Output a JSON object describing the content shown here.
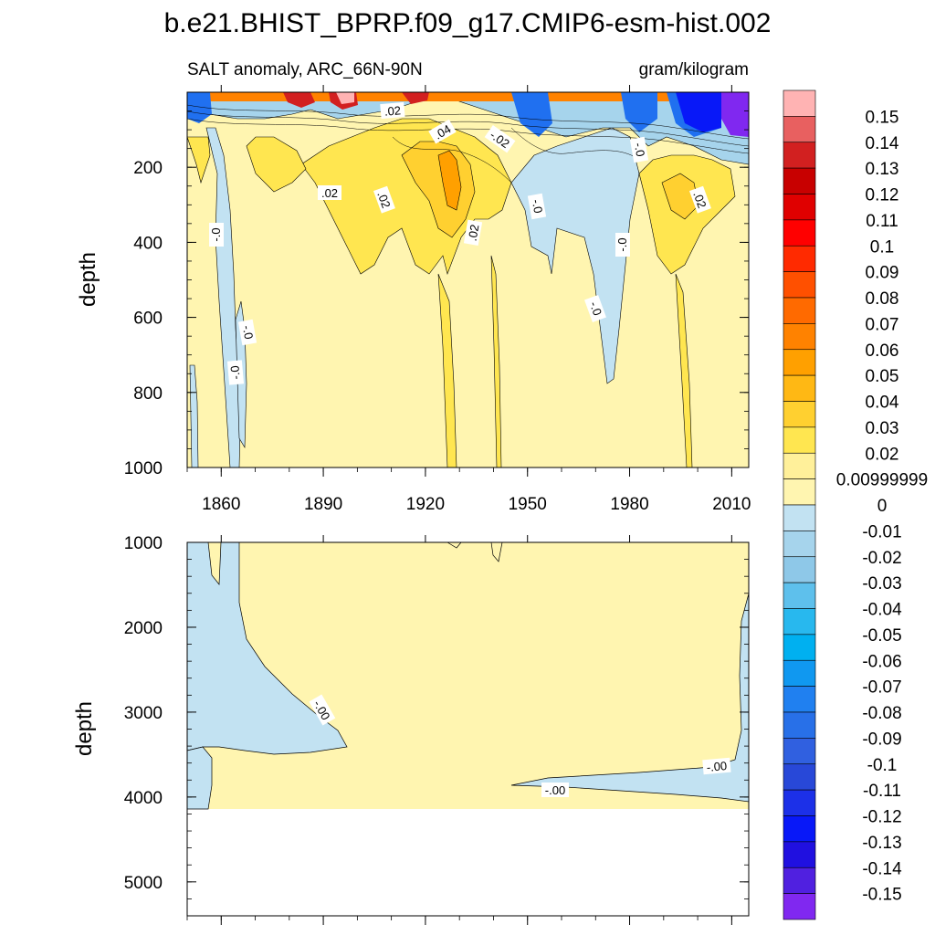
{
  "title": "b.e21.BHIST_BPRP.f09_g17.CMIP6-esm-hist.002",
  "chart_data": [
    {
      "type": "heatmap",
      "panel": "upper",
      "left_label": "SALT anomaly, ARC_66N-90N",
      "right_label": "gram/kilogram",
      "ylabel": "depth",
      "y_reversed": true,
      "ylim": [
        0,
        1000
      ],
      "xlim": [
        1850,
        2015
      ],
      "x_ticks": [
        "1860",
        "1890",
        "1920",
        "1950",
        "1980",
        "2010"
      ],
      "y_ticks": [
        "200",
        "400",
        "600",
        "800",
        "1000"
      ],
      "contour_labels": [
        ".02",
        ".04",
        "-.02",
        ".02",
        ".02",
        ".02",
        ".02",
        "-.0",
        "-.0",
        "-.0",
        "-.0",
        "-.0",
        "-.0",
        "-.0"
      ]
    },
    {
      "type": "heatmap",
      "panel": "lower",
      "ylabel": "depth",
      "y_reversed": true,
      "ylim": [
        1000,
        5400
      ],
      "xlim": [
        1850,
        2015
      ],
      "y_ticks": [
        "1000",
        "2000",
        "3000",
        "4000",
        "5000"
      ],
      "contour_labels": [
        "-.00",
        "-.00",
        "-.00"
      ]
    }
  ],
  "colorbar": {
    "labels": [
      "0.15",
      "0.14",
      "0.13",
      "0.12",
      "0.11",
      "0.1",
      "0.09",
      "0.08",
      "0.07",
      "0.06",
      "0.05",
      "0.04",
      "0.03",
      "0.02",
      "0.00999999",
      "0",
      "-0.01",
      "-0.02",
      "-0.03",
      "-0.04",
      "-0.05",
      "-0.06",
      "-0.07",
      "-0.08",
      "-0.09",
      "-0.1",
      "-0.11",
      "-0.12",
      "-0.13",
      "-0.14",
      "-0.15"
    ],
    "colors": [
      "#ffb3b3",
      "#e86060",
      "#d22020",
      "#c80000",
      "#e00000",
      "#ff0000",
      "#ff2a00",
      "#ff5000",
      "#ff6a00",
      "#ff8200",
      "#ffa000",
      "#ffb814",
      "#ffd030",
      "#ffe650",
      "#fff09a",
      "#fff5b0",
      "#c2e2f2",
      "#a6d4ec",
      "#8ec8e8",
      "#5ec0ec",
      "#28b8ee",
      "#00b0f0",
      "#1098f0",
      "#2080f0",
      "#2870e8",
      "#3060e0",
      "#2848d8",
      "#1c30e8",
      "#0818f8",
      "#2010e0",
      "#5020e0",
      "#8028f0"
    ]
  }
}
